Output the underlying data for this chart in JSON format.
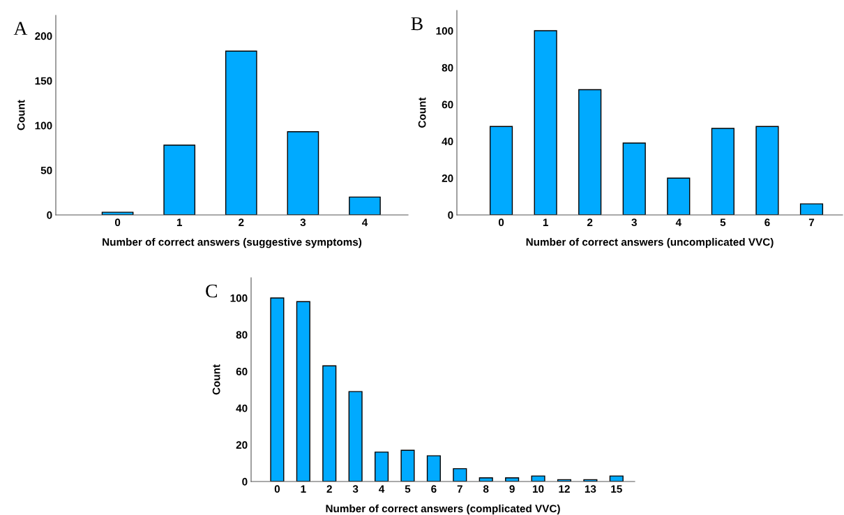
{
  "chart_data": [
    {
      "type": "bar",
      "categories": [
        "0",
        "1",
        "2",
        "3",
        "4"
      ],
      "values": [
        3,
        78,
        183,
        93,
        20
      ],
      "color": "#00aaff",
      "xlabel": "Number of correct answers (suggestive symptoms)",
      "ylabel": "Count",
      "ylim": [
        0,
        223
      ],
      "yticks": [
        0,
        50,
        100,
        150,
        200
      ],
      "annotations": [
        "A"
      ]
    },
    {
      "type": "bar",
      "categories": [
        "0",
        "1",
        "2",
        "3",
        "4",
        "5",
        "6",
        "7"
      ],
      "values": [
        48,
        100,
        68,
        39,
        20,
        47,
        48,
        6
      ],
      "color": "#00aaff",
      "xlabel": "Number of correct answers (uncomplicated VVC)",
      "ylabel": "Count",
      "ylim": [
        0,
        111
      ],
      "yticks": [
        0,
        20,
        40,
        60,
        80,
        100
      ],
      "annotations": [
        "B"
      ]
    },
    {
      "type": "bar",
      "categories": [
        "0",
        "1",
        "2",
        "3",
        "4",
        "5",
        "6",
        "7",
        "8",
        "9",
        "10",
        "12",
        "13",
        "15"
      ],
      "values": [
        100,
        98,
        63,
        49,
        16,
        17,
        14,
        7,
        2,
        2,
        3,
        1,
        1,
        3
      ],
      "color": "#00aaff",
      "xlabel": "Number of correct answers (complicated VVC)",
      "ylabel": "Count",
      "ylim": [
        0,
        111
      ],
      "yticks": [
        0,
        20,
        40,
        60,
        80,
        100
      ],
      "annotations": [
        "C"
      ]
    }
  ]
}
